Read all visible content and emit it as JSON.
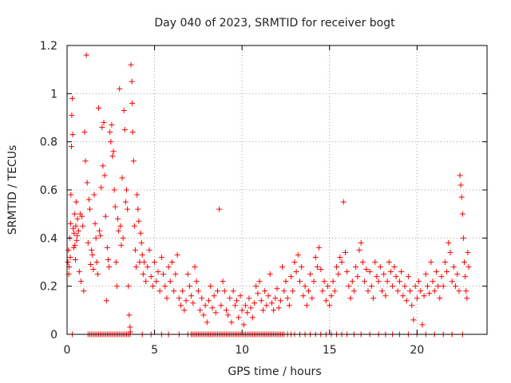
{
  "chart_data": {
    "type": "scatter",
    "title": "Day 040 of 2023, SRMTID for receiver bogt",
    "xlabel": "GPS time / hours",
    "ylabel": "SRMTID / TECUs",
    "xlim": [
      0,
      24
    ],
    "ylim": [
      0,
      1.2
    ],
    "xticks": [
      0,
      5,
      10,
      15,
      20
    ],
    "xtick_labels": [
      "0",
      "5",
      "10",
      "15",
      "20"
    ],
    "yticks": [
      0,
      0.2,
      0.4,
      0.6,
      0.8,
      1.0,
      1.2
    ],
    "ytick_labels": [
      "0",
      "0.2",
      "0.4",
      "0.6",
      "0.8",
      "1",
      "1.2"
    ],
    "grid": true,
    "marker": "+",
    "color": "#ff0000",
    "series": [
      {
        "name": "SRMTID",
        "points": [
          [
            0.05,
            0.3
          ],
          [
            0.08,
            0.35
          ],
          [
            0.1,
            0.25
          ],
          [
            0.12,
            0.28
          ],
          [
            0.15,
            0.4
          ],
          [
            0.18,
            0.32
          ],
          [
            0.2,
            0.46
          ],
          [
            0.22,
            0.58
          ],
          [
            0.25,
            0.78
          ],
          [
            0.27,
            0.91
          ],
          [
            0.3,
            0.98
          ],
          [
            0.32,
            0.83
          ],
          [
            0.35,
            0.44
          ],
          [
            0.38,
            0.36
          ],
          [
            0.4,
            0.42
          ],
          [
            0.42,
            0.5
          ],
          [
            0.45,
            0.37
          ],
          [
            0.48,
            0.31
          ],
          [
            0.5,
            0.45
          ],
          [
            0.52,
            0.55
          ],
          [
            0.55,
            0.39
          ],
          [
            0.58,
            0.41
          ],
          [
            0.6,
            0.48
          ],
          [
            0.65,
            0.43
          ],
          [
            0.7,
            0.26
          ],
          [
            0.75,
            0.5
          ],
          [
            0.8,
            0.22
          ],
          [
            0.85,
            0.49
          ],
          [
            0.9,
            0.45
          ],
          [
            0.95,
            0.18
          ],
          [
            1.0,
            0.84
          ],
          [
            1.05,
            0.72
          ],
          [
            1.1,
            1.16
          ],
          [
            1.15,
            0.63
          ],
          [
            1.2,
            0.38
          ],
          [
            1.25,
            0.56
          ],
          [
            1.3,
            0.52
          ],
          [
            1.35,
            0.29
          ],
          [
            1.4,
            0.35
          ],
          [
            1.45,
            0.33
          ],
          [
            1.5,
            0.27
          ],
          [
            1.55,
            0.58
          ],
          [
            1.6,
            0.46
          ],
          [
            1.65,
            0.4
          ],
          [
            1.7,
            0.3
          ],
          [
            1.75,
            0.25
          ],
          [
            1.8,
            0.94
          ],
          [
            1.85,
            0.43
          ],
          [
            1.9,
            0.41
          ],
          [
            1.95,
            0.61
          ],
          [
            2.0,
            0.86
          ],
          [
            2.05,
            0.7
          ],
          [
            2.1,
            0.88
          ],
          [
            2.15,
            0.66
          ],
          [
            2.2,
            0.49
          ],
          [
            2.25,
            0.14
          ],
          [
            2.3,
            0.36
          ],
          [
            2.35,
            0.31
          ],
          [
            2.4,
            0.28
          ],
          [
            2.45,
            0.84
          ],
          [
            2.5,
            0.8
          ],
          [
            2.55,
            0.87
          ],
          [
            2.6,
            0.74
          ],
          [
            2.65,
            0.76
          ],
          [
            2.7,
            0.6
          ],
          [
            2.75,
            0.53
          ],
          [
            2.8,
            0.3
          ],
          [
            2.85,
            0.2
          ],
          [
            2.9,
            0.48
          ],
          [
            2.95,
            0.43
          ],
          [
            3.0,
            1.02
          ],
          [
            3.05,
            0.45
          ],
          [
            3.1,
            0.37
          ],
          [
            3.15,
            0.65
          ],
          [
            3.2,
            0.4
          ],
          [
            3.25,
            0.93
          ],
          [
            3.3,
            0.85
          ],
          [
            3.35,
            0.55
          ],
          [
            3.4,
            0.6
          ],
          [
            3.45,
            0.52
          ],
          [
            3.5,
            0.2
          ],
          [
            3.55,
            0.08
          ],
          [
            3.6,
            0.03
          ],
          [
            3.62,
            0.01
          ],
          [
            3.65,
            1.12
          ],
          [
            3.7,
            1.05
          ],
          [
            3.72,
            0.96
          ],
          [
            3.75,
            0.84
          ],
          [
            3.8,
            0.72
          ],
          [
            3.85,
            0.45
          ],
          [
            3.9,
            0.35
          ],
          [
            3.95,
            0.28
          ],
          [
            4.0,
            0.58
          ],
          [
            4.05,
            0.52
          ],
          [
            4.1,
            0.47
          ],
          [
            4.15,
            0.3
          ],
          [
            4.2,
            0.42
          ],
          [
            4.25,
            0.38
          ],
          [
            4.3,
            0.33
          ],
          [
            4.35,
            0.25
          ],
          [
            4.4,
            0.3
          ],
          [
            4.5,
            0.22
          ],
          [
            4.6,
            0.28
          ],
          [
            4.7,
            0.35
          ],
          [
            4.8,
            0.24
          ],
          [
            4.9,
            0.2
          ],
          [
            5.0,
            0.3
          ],
          [
            5.1,
            0.22
          ],
          [
            5.2,
            0.26
          ],
          [
            5.3,
            0.18
          ],
          [
            5.4,
            0.32
          ],
          [
            5.5,
            0.25
          ],
          [
            5.6,
            0.2
          ],
          [
            5.7,
            0.15
          ],
          [
            5.8,
            0.28
          ],
          [
            5.9,
            0.22
          ],
          [
            6.0,
            0.3
          ],
          [
            6.1,
            0.18
          ],
          [
            6.2,
            0.25
          ],
          [
            6.3,
            0.33
          ],
          [
            6.4,
            0.15
          ],
          [
            6.5,
            0.12
          ],
          [
            6.6,
            0.18
          ],
          [
            6.7,
            0.1
          ],
          [
            6.8,
            0.14
          ],
          [
            6.9,
            0.25
          ],
          [
            7.0,
            0.2
          ],
          [
            7.1,
            0.16
          ],
          [
            7.2,
            0.13
          ],
          [
            7.3,
            0.28
          ],
          [
            7.4,
            0.22
          ],
          [
            7.5,
            0.18
          ],
          [
            7.6,
            0.1
          ],
          [
            7.7,
            0.15
          ],
          [
            7.8,
            0.08
          ],
          [
            7.9,
            0.12
          ],
          [
            8.0,
            0.05
          ],
          [
            8.1,
            0.14
          ],
          [
            8.2,
            0.2
          ],
          [
            8.3,
            0.11
          ],
          [
            8.4,
            0.16
          ],
          [
            8.5,
            0.09
          ],
          [
            8.6,
            0.18
          ],
          [
            8.7,
            0.52
          ],
          [
            8.8,
            0.12
          ],
          [
            8.9,
            0.22
          ],
          [
            9.0,
            0.18
          ],
          [
            9.1,
            0.1
          ],
          [
            9.2,
            0.08
          ],
          [
            9.3,
            0.15
          ],
          [
            9.4,
            0.05
          ],
          [
            9.5,
            0.18
          ],
          [
            9.6,
            0.12
          ],
          [
            9.7,
            0.14
          ],
          [
            9.8,
            0.07
          ],
          [
            9.9,
            0.16
          ],
          [
            10.0,
            0.1
          ],
          [
            10.1,
            0.04
          ],
          [
            10.2,
            0.12
          ],
          [
            10.3,
            0.09
          ],
          [
            10.4,
            0.15
          ],
          [
            10.5,
            0.11
          ],
          [
            10.6,
            0.07
          ],
          [
            10.7,
            0.13
          ],
          [
            10.8,
            0.2
          ],
          [
            10.9,
            0.17
          ],
          [
            11.0,
            0.22
          ],
          [
            11.1,
            0.14
          ],
          [
            11.2,
            0.1
          ],
          [
            11.3,
            0.18
          ],
          [
            11.4,
            0.12
          ],
          [
            11.5,
            0.16
          ],
          [
            11.6,
            0.25
          ],
          [
            11.7,
            0.13
          ],
          [
            11.8,
            0.1
          ],
          [
            11.9,
            0.15
          ],
          [
            12.0,
            0.19
          ],
          [
            12.1,
            0.11
          ],
          [
            12.2,
            0.14
          ],
          [
            12.3,
            0.28
          ],
          [
            12.4,
            0.18
          ],
          [
            12.5,
            0.22
          ],
          [
            12.6,
            0.15
          ],
          [
            12.7,
            0.12
          ],
          [
            12.8,
            0.24
          ],
          [
            12.9,
            0.18
          ],
          [
            13.0,
            0.3
          ],
          [
            13.1,
            0.26
          ],
          [
            13.2,
            0.33
          ],
          [
            13.3,
            0.22
          ],
          [
            13.4,
            0.28
          ],
          [
            13.5,
            0.16
          ],
          [
            13.6,
            0.2
          ],
          [
            13.7,
            0.12
          ],
          [
            13.8,
            0.18
          ],
          [
            13.9,
            0.25
          ],
          [
            14.0,
            0.15
          ],
          [
            14.1,
            0.22
          ],
          [
            14.2,
            0.32
          ],
          [
            14.3,
            0.28
          ],
          [
            14.4,
            0.36
          ],
          [
            14.5,
            0.27
          ],
          [
            14.6,
            0.18
          ],
          [
            14.7,
            0.22
          ],
          [
            14.8,
            0.14
          ],
          [
            14.9,
            0.2
          ],
          [
            15.0,
            0.12
          ],
          [
            15.1,
            0.16
          ],
          [
            15.2,
            0.22
          ],
          [
            15.3,
            0.18
          ],
          [
            15.4,
            0.28
          ],
          [
            15.5,
            0.25
          ],
          [
            15.6,
            0.32
          ],
          [
            15.7,
            0.3
          ],
          [
            15.8,
            0.55
          ],
          [
            15.9,
            0.34
          ],
          [
            16.0,
            0.26
          ],
          [
            16.1,
            0.2
          ],
          [
            16.2,
            0.15
          ],
          [
            16.3,
            0.22
          ],
          [
            16.4,
            0.18
          ],
          [
            16.5,
            0.28
          ],
          [
            16.6,
            0.24
          ],
          [
            16.7,
            0.35
          ],
          [
            16.8,
            0.38
          ],
          [
            16.9,
            0.3
          ],
          [
            17.0,
            0.22
          ],
          [
            17.1,
            0.27
          ],
          [
            17.2,
            0.18
          ],
          [
            17.3,
            0.26
          ],
          [
            17.4,
            0.2
          ],
          [
            17.5,
            0.15
          ],
          [
            17.6,
            0.3
          ],
          [
            17.7,
            0.24
          ],
          [
            17.8,
            0.22
          ],
          [
            17.9,
            0.28
          ],
          [
            18.0,
            0.18
          ],
          [
            18.1,
            0.25
          ],
          [
            18.2,
            0.16
          ],
          [
            18.3,
            0.22
          ],
          [
            18.4,
            0.3
          ],
          [
            18.5,
            0.26
          ],
          [
            18.6,
            0.2
          ],
          [
            18.7,
            0.28
          ],
          [
            18.8,
            0.24
          ],
          [
            18.9,
            0.18
          ],
          [
            19.0,
            0.22
          ],
          [
            19.1,
            0.26
          ],
          [
            19.2,
            0.16
          ],
          [
            19.3,
            0.2
          ],
          [
            19.4,
            0.14
          ],
          [
            19.5,
            0.24
          ],
          [
            19.6,
            0.18
          ],
          [
            19.7,
            0.12
          ],
          [
            19.8,
            0.06
          ],
          [
            19.9,
            0.2
          ],
          [
            20.0,
            0.15
          ],
          [
            20.1,
            0.22
          ],
          [
            20.2,
            0.18
          ],
          [
            20.3,
            0.04
          ],
          [
            20.4,
            0.16
          ],
          [
            20.5,
            0.25
          ],
          [
            20.6,
            0.2
          ],
          [
            20.7,
            0.17
          ],
          [
            20.8,
            0.3
          ],
          [
            20.9,
            0.22
          ],
          [
            21.0,
            0.18
          ],
          [
            21.1,
            0.26
          ],
          [
            21.2,
            0.2
          ],
          [
            21.3,
            0.15
          ],
          [
            21.4,
            0.24
          ],
          [
            21.5,
            0.2
          ],
          [
            21.6,
            0.3
          ],
          [
            21.7,
            0.26
          ],
          [
            21.8,
            0.38
          ],
          [
            21.9,
            0.34
          ],
          [
            22.0,
            0.22
          ],
          [
            22.1,
            0.28
          ],
          [
            22.2,
            0.2
          ],
          [
            22.3,
            0.25
          ],
          [
            22.4,
            0.18
          ],
          [
            22.45,
            0.66
          ],
          [
            22.5,
            0.62
          ],
          [
            22.55,
            0.57
          ],
          [
            22.6,
            0.5
          ],
          [
            22.65,
            0.4
          ],
          [
            22.7,
            0.3
          ],
          [
            22.75,
            0.24
          ],
          [
            22.8,
            0.18
          ],
          [
            22.85,
            0.15
          ],
          [
            22.9,
            0.34
          ],
          [
            22.95,
            0.28
          ]
        ]
      }
    ],
    "zero_markers_x": [
      0.3,
      1.2,
      1.3,
      1.4,
      1.5,
      1.6,
      1.7,
      1.8,
      1.9,
      2.0,
      2.1,
      2.2,
      2.3,
      2.4,
      2.5,
      2.6,
      2.7,
      2.8,
      2.9,
      3.0,
      3.1,
      3.2,
      3.3,
      3.4,
      3.5,
      3.6,
      4.3,
      4.8,
      5.4,
      5.8,
      6.4,
      6.9,
      7.1,
      7.2,
      7.3,
      7.4,
      7.5,
      7.6,
      7.7,
      7.8,
      7.9,
      8.0,
      8.1,
      8.2,
      8.3,
      8.4,
      8.5,
      8.6,
      8.7,
      8.8,
      8.9,
      9.0,
      9.1,
      9.2,
      9.3,
      9.4,
      9.5,
      9.6,
      9.7,
      9.8,
      9.9,
      10.0,
      10.1,
      10.2,
      10.3,
      10.4,
      10.5,
      10.6,
      10.7,
      10.8,
      10.9,
      11.0,
      11.1,
      11.2,
      11.3,
      11.4,
      11.5,
      11.6,
      11.7,
      11.8,
      11.9,
      12.0,
      12.1,
      12.2,
      12.3,
      12.4,
      12.6,
      12.8,
      13.0,
      13.3,
      13.6,
      13.9,
      14.2,
      14.5,
      14.8,
      15.1,
      15.4,
      15.7,
      16.0,
      16.4,
      16.8,
      17.3,
      17.8,
      18.2,
      18.6,
      19.0,
      19.5,
      20.0,
      20.5,
      21.0,
      21.5,
      22.0,
      22.6
    ]
  }
}
